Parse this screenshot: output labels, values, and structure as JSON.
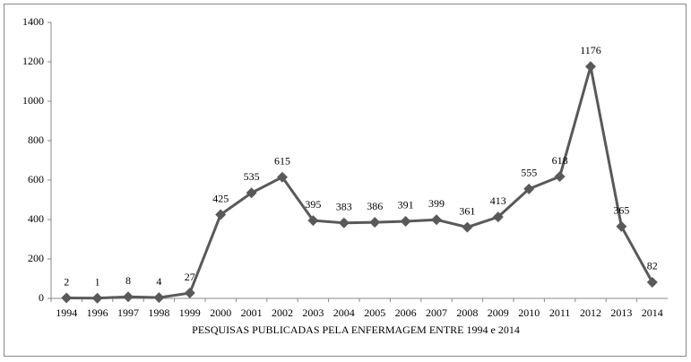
{
  "chart_data": {
    "type": "line",
    "x_label": "PESQUISAS PUBLICADAS PELA ENFERMAGEM ENTRE 1994 e 2014",
    "categories": [
      "1994",
      "1996",
      "1997",
      "1998",
      "1999",
      "2000",
      "2001",
      "2002",
      "2003",
      "2004",
      "2005",
      "2006",
      "2007",
      "2008",
      "2009",
      "2010",
      "2011",
      "2012",
      "2013",
      "2014"
    ],
    "values": [
      2,
      1,
      8,
      4,
      27,
      425,
      535,
      615,
      395,
      383,
      386,
      391,
      399,
      361,
      413,
      555,
      618,
      1176,
      365,
      82
    ],
    "color": "#595959",
    "ylim": [
      0,
      1400
    ],
    "yticks": [
      0,
      200,
      400,
      600,
      800,
      1000,
      1200,
      1400
    ],
    "grid": false,
    "data_labels": true
  }
}
